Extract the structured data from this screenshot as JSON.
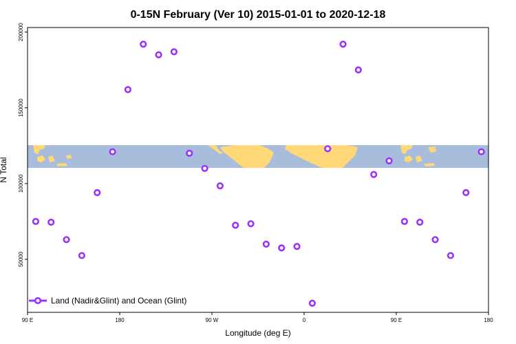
{
  "chart_data": {
    "type": "scatter",
    "title": "0-15N February (Ver 10)   2015-01-01 to 2020-12-18",
    "xlabel": "Longitude (deg E)",
    "ylabel": "N Total",
    "x_ticks": [
      {
        "value": 90,
        "label": "90 E"
      },
      {
        "value": 180,
        "label": "180"
      },
      {
        "value": 270,
        "label": "90 W"
      },
      {
        "value": 360,
        "label": "0"
      },
      {
        "value": 450,
        "label": "90 E"
      },
      {
        "value": 540,
        "label": "180"
      }
    ],
    "y_ticks": [
      {
        "value": 50000,
        "label": "50000"
      },
      {
        "value": 100000,
        "label": "100000"
      },
      {
        "value": 150000,
        "label": "150000"
      },
      {
        "value": 200000,
        "label": "200000"
      }
    ],
    "xlim": [
      90,
      540
    ],
    "ylim": [
      15000,
      203000
    ],
    "series": [
      {
        "name": "Land (Nadir&Glint) and Ocean (Glint)",
        "color": "#9b30ff",
        "x": [
          98,
          113,
          128,
          143,
          158,
          173,
          188,
          203,
          218,
          233,
          248,
          263,
          278,
          293,
          308,
          323,
          338,
          353,
          368,
          383,
          398,
          413,
          428,
          443,
          458,
          473,
          488,
          503,
          518,
          533
        ],
        "y": [
          75000,
          74500,
          63000,
          52500,
          94000,
          121000,
          162000,
          192000,
          185000,
          187000,
          120000,
          110000,
          98500,
          72500,
          73500,
          60000,
          57500,
          58500,
          21000,
          123000,
          192000,
          175000,
          106000,
          115000,
          75000,
          74500,
          63000,
          52500,
          94000,
          121000
        ]
      }
    ],
    "map_band": {
      "lat_range": "0-15N",
      "ocean_color": "#a8bcdc",
      "land_color": "#ffd878"
    },
    "legend_position": "bottom-left",
    "grid": false
  }
}
